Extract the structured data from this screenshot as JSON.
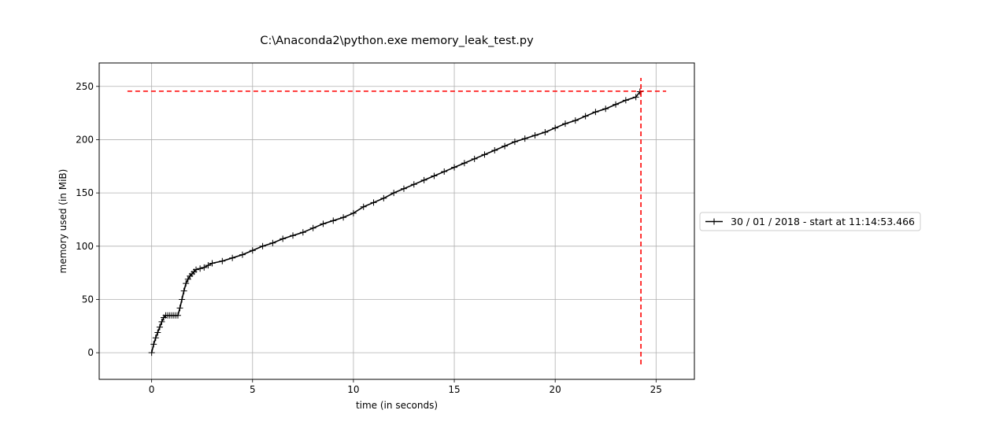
{
  "chart_data": {
    "type": "line",
    "title": "C:\\Anaconda2\\python.exe memory_leak_test.py",
    "xlabel": "time (in seconds)",
    "ylabel": "memory used (in MiB)",
    "xlim": [
      -2.6,
      26.9
    ],
    "ylim": [
      -25,
      272
    ],
    "xticks": [
      0,
      5,
      10,
      15,
      20,
      25
    ],
    "yticks": [
      0,
      50,
      100,
      150,
      200,
      250
    ],
    "grid": true,
    "legend": "outside-right",
    "series": [
      {
        "name": "30 / 01 / 2018 - start at 11:14:53.466",
        "color": "#000000",
        "marker": "+",
        "x": [
          0.0,
          0.1,
          0.2,
          0.3,
          0.4,
          0.5,
          0.6,
          0.7,
          0.8,
          0.9,
          1.0,
          1.1,
          1.2,
          1.3,
          1.4,
          1.5,
          1.6,
          1.7,
          1.8,
          1.9,
          2.0,
          2.1,
          2.2,
          2.4,
          2.6,
          2.8,
          3.0,
          3.5,
          4.0,
          4.5,
          5.0,
          5.5,
          6.0,
          6.5,
          7.0,
          7.5,
          8.0,
          8.5,
          9.0,
          9.5,
          10.0,
          10.5,
          11.0,
          11.5,
          12.0,
          12.5,
          13.0,
          13.5,
          14.0,
          14.5,
          15.0,
          15.5,
          16.0,
          16.5,
          17.0,
          17.5,
          18.0,
          18.5,
          19.0,
          19.5,
          20.0,
          20.5,
          21.0,
          21.5,
          22.0,
          22.5,
          23.0,
          23.5,
          24.0,
          24.2
        ],
        "y": [
          0,
          8,
          14,
          19,
          24,
          29,
          33,
          35,
          35,
          35,
          35,
          35,
          35,
          35,
          42,
          50,
          58,
          65,
          69,
          72,
          74,
          76,
          78,
          79,
          80,
          82,
          84,
          86,
          89,
          92,
          96,
          100,
          103,
          107,
          110,
          113,
          117,
          121,
          124,
          127,
          131,
          137,
          141,
          145,
          150,
          154,
          158,
          162,
          166,
          170,
          174,
          178,
          182,
          186,
          190,
          194,
          198,
          201,
          204,
          207,
          211,
          215,
          218,
          222,
          226,
          229,
          233,
          237,
          240,
          245
        ]
      }
    ],
    "reference_lines": [
      {
        "orientation": "horizontal",
        "value": 245.5,
        "from": -1.2,
        "to": 25.5,
        "color": "#ff0000",
        "style": "dashed"
      },
      {
        "orientation": "vertical",
        "value": 24.25,
        "from": -11,
        "to": 258,
        "color": "#ff0000",
        "style": "dashed"
      }
    ]
  }
}
